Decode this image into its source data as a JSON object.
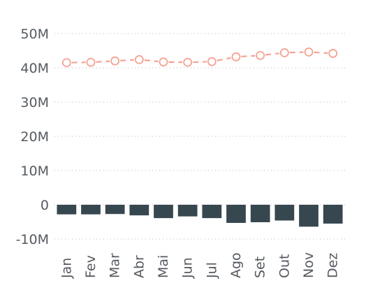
{
  "chart_data": {
    "type": "bar",
    "categories": [
      "Jan",
      "Fev",
      "Mar",
      "Abr",
      "Mai",
      "Jun",
      "Jul",
      "Ago",
      "Set",
      "Out",
      "Nov",
      "Dez"
    ],
    "series": [
      {
        "type": "bar",
        "values": [
          -2.8,
          -2.8,
          -2.7,
          -3.1,
          -3.9,
          -3.4,
          -3.9,
          -5.3,
          -5.1,
          -4.6,
          -6.4,
          -5.5
        ]
      },
      {
        "type": "line",
        "values": [
          41.5,
          41.6,
          42.0,
          42.4,
          41.7,
          41.6,
          41.8,
          43.2,
          43.6,
          44.4,
          44.6,
          44.2
        ]
      }
    ],
    "yticks": [
      "50M",
      "40M",
      "30M",
      "20M",
      "10M",
      "0",
      "-10M"
    ],
    "ytick_values": [
      50,
      40,
      30,
      20,
      10,
      0,
      -10
    ],
    "ylim": [
      -10,
      50
    ],
    "grid": true,
    "colors": {
      "bar": "#37474f",
      "line": "#f4a394",
      "axis_text": "#555a5f",
      "grid": "#c8c8c8"
    }
  }
}
